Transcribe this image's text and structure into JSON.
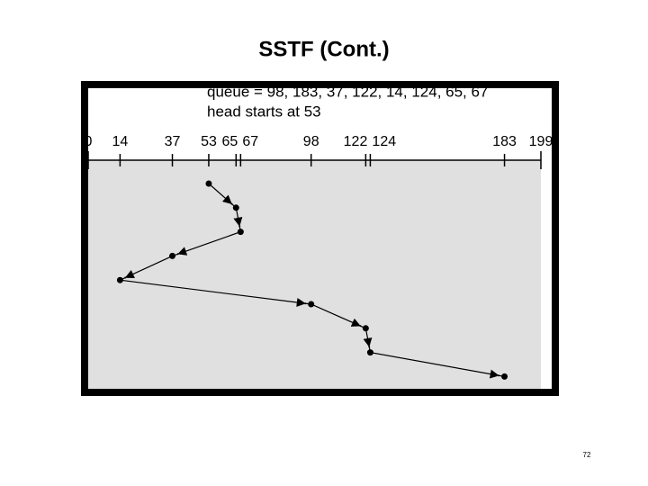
{
  "title": "SSTF (Cont.)",
  "page_number": "72",
  "chart_data": {
    "type": "line",
    "annotations": [
      "queue = 98, 183, 37, 122, 14, 124, 65, 67",
      "head starts at 53"
    ],
    "values": [
      53,
      65,
      67,
      37,
      14,
      98,
      122,
      124,
      183
    ],
    "xlim": [
      0,
      199
    ],
    "xticks": [
      0,
      14,
      37,
      53,
      65,
      67,
      98,
      122,
      124,
      183,
      199
    ],
    "color": "#000000"
  }
}
